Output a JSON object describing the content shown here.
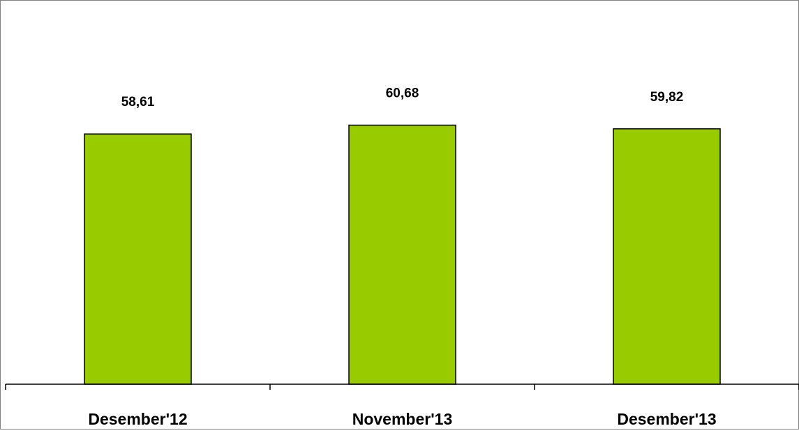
{
  "chart_data": {
    "type": "bar",
    "title": "",
    "xlabel": "",
    "ylabel": "",
    "categories": [
      "Desember'12",
      "November'13",
      "Desember'13"
    ],
    "values": [
      58.61,
      60.68,
      59.82
    ],
    "value_labels": [
      "58,61",
      "60,68",
      "59,82"
    ],
    "ylim": [
      0,
      90
    ],
    "grid": false,
    "legend": "none",
    "colors": {
      "bar_fill": "#99CC00",
      "bar_stroke": "#000000",
      "axis": "#000000",
      "frame": "#808080",
      "text": "#000000"
    }
  }
}
